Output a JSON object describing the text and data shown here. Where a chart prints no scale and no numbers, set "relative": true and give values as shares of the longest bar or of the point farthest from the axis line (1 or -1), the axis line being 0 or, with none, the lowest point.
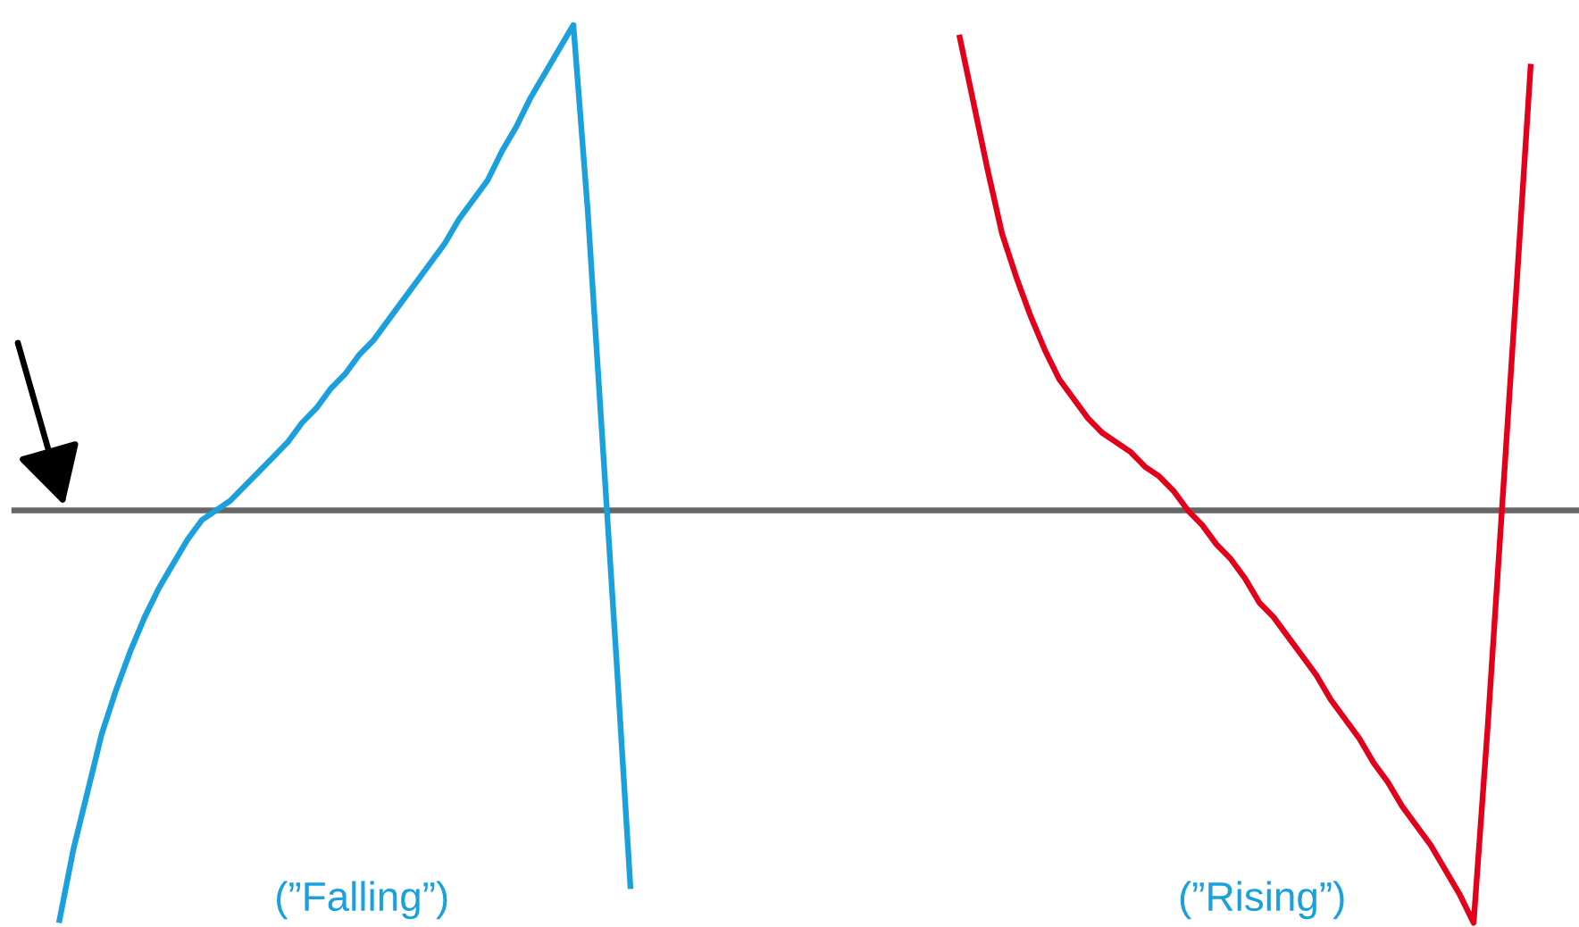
{
  "chart_data": {
    "type": "line",
    "relative": true,
    "categories": [
      null,
      null,
      null,
      null,
      null,
      null,
      null,
      null,
      null,
      null,
      null,
      null,
      null,
      null,
      null,
      null,
      null,
      null,
      null,
      null,
      null,
      null,
      null,
      null,
      null,
      null,
      null,
      null,
      null,
      null,
      null,
      null,
      null,
      null,
      null,
      null,
      null,
      null,
      null,
      null,
      null,
      null,
      null,
      null,
      null,
      null,
      null,
      null,
      null,
      null,
      null,
      null,
      null,
      null,
      null,
      null,
      null,
      null,
      null,
      null,
      null,
      null,
      null,
      null,
      null,
      null,
      null,
      null,
      null,
      null,
      null,
      null,
      null,
      null,
      null,
      null,
      null,
      null,
      null,
      null,
      null,
      null,
      null,
      null,
      null,
      null,
      null,
      null,
      null,
      null,
      null,
      null,
      null,
      null,
      null,
      null,
      null,
      null,
      null,
      null,
      null,
      null,
      null,
      null
    ],
    "series": [
      {
        "color": "#1aa0dc",
        "values": [
          -0.85,
          -0.7,
          -0.58,
          -0.46,
          -0.37,
          -0.29,
          -0.22,
          -0.16,
          -0.11,
          -0.06,
          -0.02,
          0,
          0.02,
          0.05,
          0.08,
          0.11,
          0.14,
          0.18,
          0.21,
          0.25,
          0.28,
          0.32,
          0.35,
          0.39,
          0.43,
          0.47,
          0.51,
          0.55,
          0.6,
          0.64,
          0.68,
          0.74,
          0.79,
          0.85,
          0.9,
          0.95,
          1,
          0.62,
          0.16,
          -0.3,
          -0.78,
          null,
          null,
          null,
          null,
          null,
          null,
          null,
          null,
          null,
          null,
          null,
          null,
          null,
          null,
          null,
          null,
          null,
          null,
          null,
          null,
          null,
          null,
          null,
          null,
          null,
          null,
          null,
          null,
          null,
          null,
          null,
          null,
          null,
          null,
          null,
          null,
          null,
          null,
          null,
          null,
          null,
          null,
          null,
          null,
          null,
          null,
          null,
          null,
          null,
          null,
          null,
          null,
          null,
          null,
          null,
          null,
          null,
          null,
          null,
          null,
          null,
          null,
          null
        ]
      },
      {
        "color": "#e2001a",
        "values": [
          null,
          null,
          null,
          null,
          null,
          null,
          null,
          null,
          null,
          null,
          null,
          null,
          null,
          null,
          null,
          null,
          null,
          null,
          null,
          null,
          null,
          null,
          null,
          null,
          null,
          null,
          null,
          null,
          null,
          null,
          null,
          null,
          null,
          null,
          null,
          null,
          null,
          null,
          null,
          null,
          null,
          null,
          null,
          null,
          null,
          null,
          null,
          null,
          null,
          null,
          null,
          null,
          null,
          null,
          null,
          null,
          null,
          null,
          null,
          null,
          null,
          null,
          null,
          0.98,
          0.84,
          0.7,
          0.57,
          0.48,
          0.4,
          0.33,
          0.27,
          0.23,
          0.19,
          0.16,
          0.14,
          0.12,
          0.09,
          0.07,
          0.04,
          0,
          -0.03,
          -0.07,
          -0.1,
          -0.14,
          -0.19,
          -0.22,
          -0.26,
          -0.3,
          -0.34,
          -0.39,
          -0.43,
          -0.47,
          -0.52,
          -0.56,
          -0.61,
          -0.65,
          -0.69,
          -0.74,
          -0.79,
          -0.85,
          -0.44,
          0.01,
          0.46,
          0.92
        ]
      }
    ],
    "annotations": [
      "(”Falling”)",
      "(”Rising”)"
    ]
  }
}
